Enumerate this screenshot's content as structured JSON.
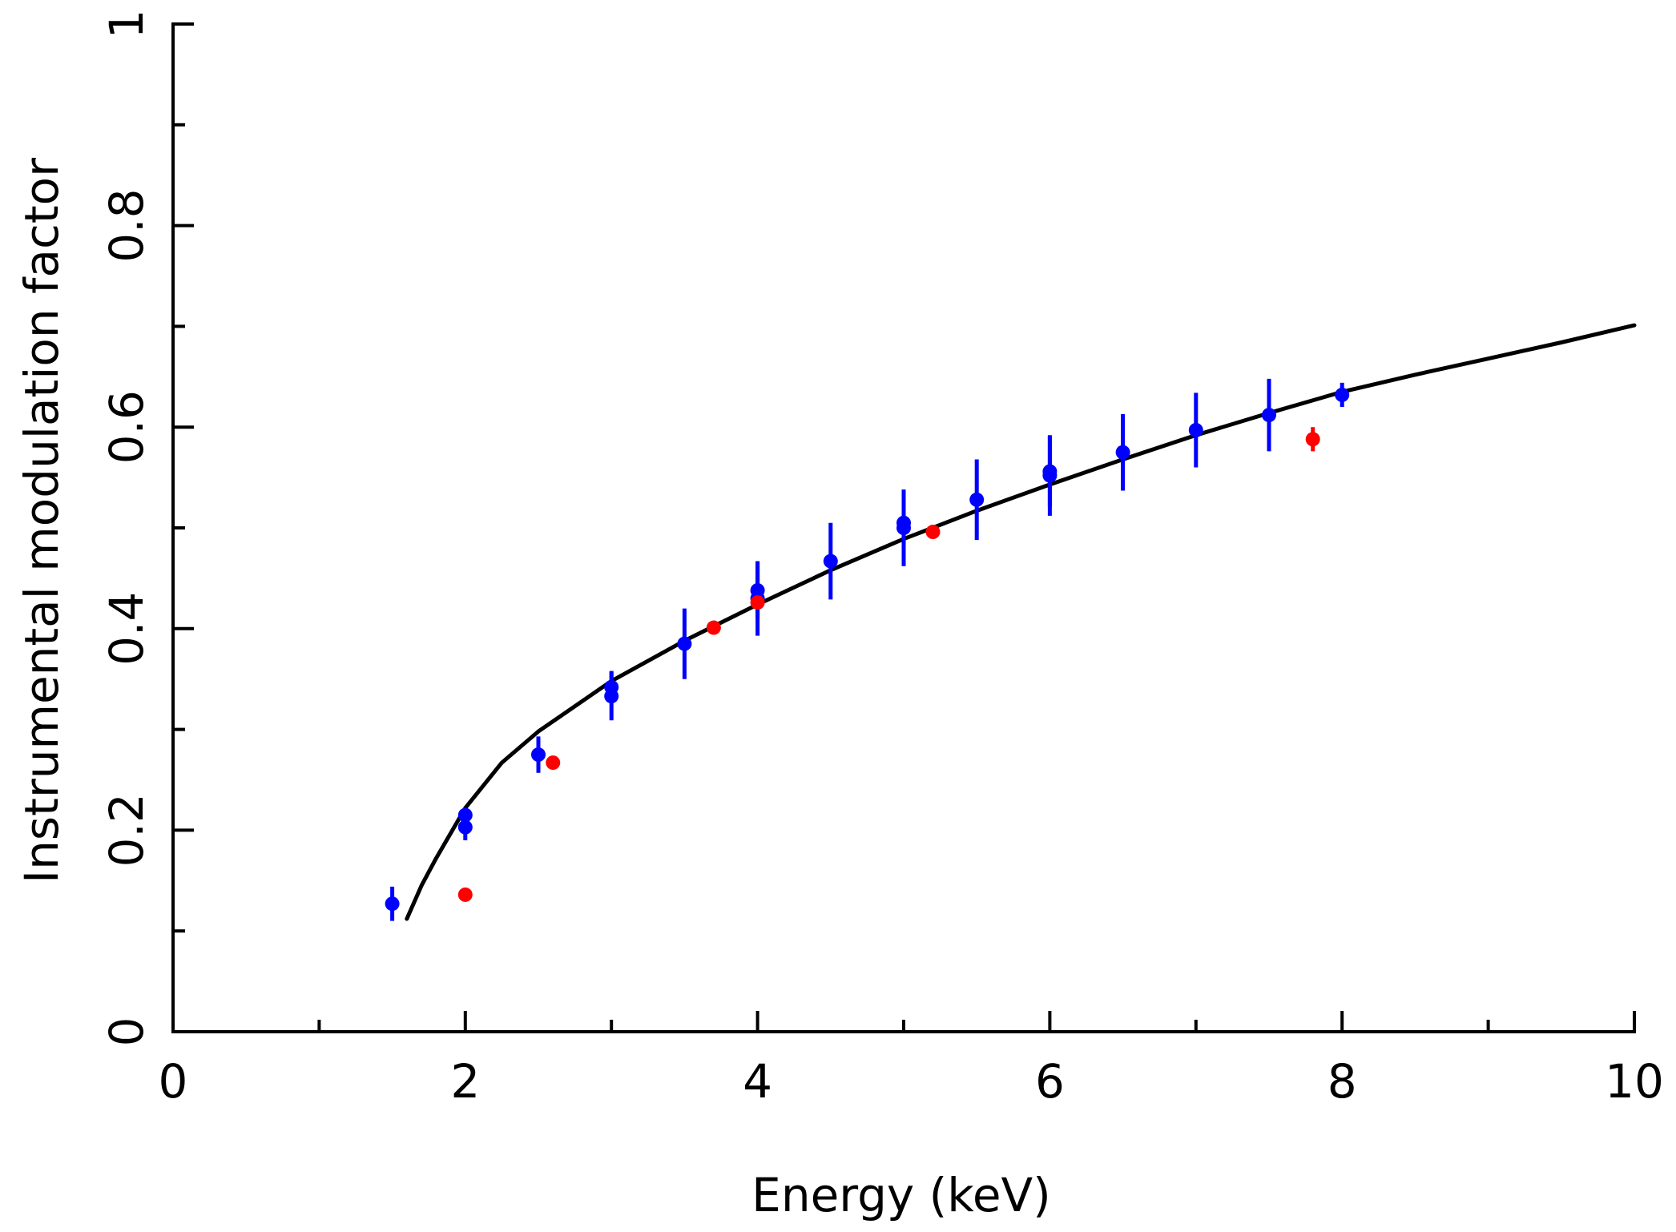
{
  "chart_data": {
    "type": "scatter",
    "title": "",
    "xlabel": "Energy (keV)",
    "ylabel": "Instrumental modulation factor",
    "xlim": [
      0,
      10
    ],
    "ylim": [
      0,
      1
    ],
    "x_ticks": [
      0,
      2,
      4,
      6,
      8,
      10
    ],
    "x_tick_labels": [
      "0",
      "2",
      "4",
      "6",
      "8",
      "10"
    ],
    "x_minor_ticks": [
      1,
      3,
      5,
      7,
      9
    ],
    "y_ticks": [
      0,
      0.2,
      0.4,
      0.6,
      0.8,
      1
    ],
    "y_tick_labels": [
      "0",
      "0.2",
      "0.4",
      "0.6",
      "0.8",
      "1"
    ],
    "y_minor_ticks": [
      0.1,
      0.3,
      0.5,
      0.7,
      0.9
    ],
    "grid": false,
    "colors": {
      "blue": "#0000ff",
      "red": "#ff0000",
      "curve": "#000000",
      "axis": "#000000"
    },
    "series": [
      {
        "name": "blue points",
        "color": "#0000ff",
        "points": [
          {
            "x": 1.5,
            "y": 0.127,
            "err": 0.017
          },
          {
            "x": 2.0,
            "y": 0.215,
            "err": 0.0
          },
          {
            "x": 2.0,
            "y": 0.203,
            "err": 0.013
          },
          {
            "x": 2.5,
            "y": 0.275,
            "err": 0.018
          },
          {
            "x": 3.0,
            "y": 0.342,
            "err": 0.016
          },
          {
            "x": 3.0,
            "y": 0.333,
            "err": 0.024
          },
          {
            "x": 3.5,
            "y": 0.385,
            "err": 0.035
          },
          {
            "x": 4.0,
            "y": 0.438,
            "err": 0.028
          },
          {
            "x": 4.0,
            "y": 0.43,
            "err": 0.037
          },
          {
            "x": 4.5,
            "y": 0.467,
            "err": 0.038
          },
          {
            "x": 5.0,
            "y": 0.505,
            "err": 0.033
          },
          {
            "x": 5.0,
            "y": 0.5,
            "err": 0.038
          },
          {
            "x": 5.5,
            "y": 0.528,
            "err": 0.04
          },
          {
            "x": 6.0,
            "y": 0.556,
            "err": 0.035
          },
          {
            "x": 6.0,
            "y": 0.552,
            "err": 0.04
          },
          {
            "x": 6.5,
            "y": 0.575,
            "err": 0.038
          },
          {
            "x": 7.0,
            "y": 0.597,
            "err": 0.037
          },
          {
            "x": 7.5,
            "y": 0.612,
            "err": 0.036
          },
          {
            "x": 8.0,
            "y": 0.632,
            "err": 0.012
          }
        ]
      },
      {
        "name": "red points",
        "color": "#ff0000",
        "points": [
          {
            "x": 2.0,
            "y": 0.136,
            "err": 0.0
          },
          {
            "x": 2.6,
            "y": 0.267,
            "err": 0.0
          },
          {
            "x": 3.7,
            "y": 0.401,
            "err": 0.0
          },
          {
            "x": 4.0,
            "y": 0.426,
            "err": 0.0
          },
          {
            "x": 5.2,
            "y": 0.496,
            "err": 0.0
          },
          {
            "x": 7.8,
            "y": 0.588,
            "err": 0.012
          }
        ]
      }
    ],
    "fit_curve": {
      "name": "model curve",
      "color": "#000000",
      "x": [
        1.6,
        1.7,
        1.8,
        2.0,
        2.25,
        2.5,
        3.0,
        3.5,
        4.0,
        4.5,
        5.0,
        5.5,
        6.0,
        6.5,
        7.0,
        7.5,
        8.0,
        8.5,
        9.0,
        9.5,
        10.0
      ],
      "y": [
        0.112,
        0.145,
        0.172,
        0.222,
        0.267,
        0.298,
        0.348,
        0.388,
        0.424,
        0.458,
        0.489,
        0.517,
        0.543,
        0.568,
        0.592,
        0.614,
        0.635,
        0.652,
        0.668,
        0.684,
        0.701
      ]
    }
  }
}
